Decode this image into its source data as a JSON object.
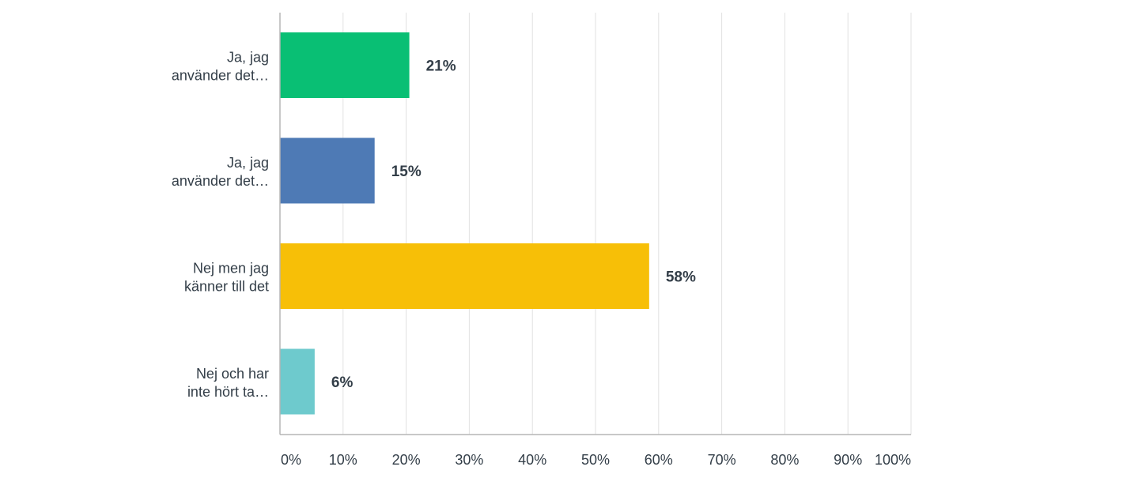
{
  "chart_data": {
    "type": "bar",
    "orientation": "horizontal",
    "categories": [
      [
        "Ja, jag",
        "använder det…"
      ],
      [
        "Ja, jag",
        "använder det…"
      ],
      [
        "Nej men jag",
        "känner till det"
      ],
      [
        "Nej och har",
        "inte hört ta…"
      ]
    ],
    "values": [
      20.5,
      15,
      58.5,
      5.5
    ],
    "value_labels": [
      "21%",
      "15%",
      "58%",
      "6%"
    ],
    "colors": [
      "#09bf74",
      "#4e7ab5",
      "#f7bf07",
      "#6ecacd"
    ],
    "x_ticks": [
      "0%",
      "10%",
      "20%",
      "30%",
      "40%",
      "50%",
      "60%",
      "70%",
      "80%",
      "90%",
      "100%"
    ],
    "xlim": [
      0,
      100
    ],
    "grid": true,
    "legend": "none",
    "title": "",
    "xlabel": "",
    "ylabel": ""
  }
}
